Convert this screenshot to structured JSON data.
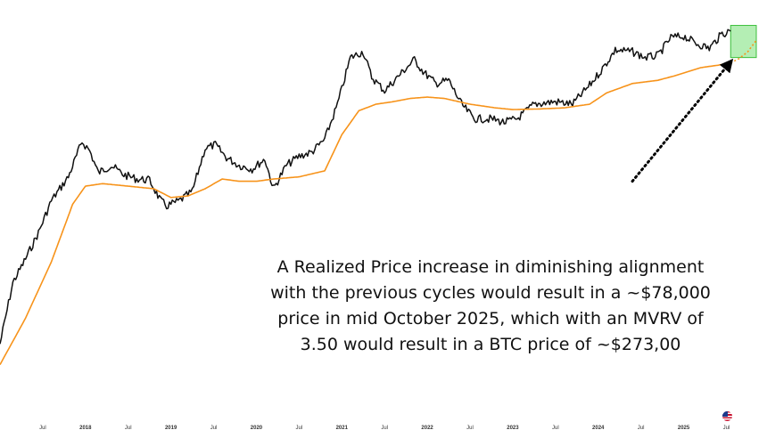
{
  "chart_data": {
    "type": "line",
    "title": "",
    "xlabel": "",
    "ylabel": "",
    "x_ticks": [
      "Jul",
      "2018",
      "Jul",
      "2019",
      "Jul",
      "2020",
      "Jul",
      "2021",
      "Jul",
      "2022",
      "Jul",
      "2023",
      "Jul",
      "2024",
      "Jul",
      "2025",
      "Jul"
    ],
    "series": [
      {
        "name": "",
        "role": "btc-price",
        "color": "#111111",
        "points": [
          [
            2017.0,
            9
          ],
          [
            2017.15,
            30
          ],
          [
            2017.3,
            48
          ],
          [
            2017.45,
            80
          ],
          [
            2017.6,
            150
          ],
          [
            2017.8,
            240
          ],
          [
            2017.96,
            480
          ],
          [
            2018.05,
            400
          ],
          [
            2018.15,
            260
          ],
          [
            2018.3,
            300
          ],
          [
            2018.45,
            250
          ],
          [
            2018.6,
            230
          ],
          [
            2018.75,
            225
          ],
          [
            2018.88,
            150
          ],
          [
            2018.95,
            135
          ],
          [
            2019.1,
            150
          ],
          [
            2019.25,
            180
          ],
          [
            2019.4,
            420
          ],
          [
            2019.52,
            450
          ],
          [
            2019.65,
            350
          ],
          [
            2019.8,
            300
          ],
          [
            2019.95,
            280
          ],
          [
            2020.1,
            340
          ],
          [
            2020.2,
            190
          ],
          [
            2020.35,
            300
          ],
          [
            2020.5,
            360
          ],
          [
            2020.65,
            390
          ],
          [
            2020.8,
            500
          ],
          [
            2020.95,
            1000
          ],
          [
            2021.1,
            2500
          ],
          [
            2021.25,
            2800
          ],
          [
            2021.35,
            1700
          ],
          [
            2021.5,
            1300
          ],
          [
            2021.65,
            1700
          ],
          [
            2021.85,
            2400
          ],
          [
            2021.95,
            1900
          ],
          [
            2022.1,
            1500
          ],
          [
            2022.25,
            1600
          ],
          [
            2022.4,
            1000
          ],
          [
            2022.55,
            750
          ],
          [
            2022.75,
            750
          ],
          [
            2022.9,
            700
          ],
          [
            2023.05,
            750
          ],
          [
            2023.25,
            1000
          ],
          [
            2023.5,
            1050
          ],
          [
            2023.7,
            1000
          ],
          [
            2023.9,
            1450
          ],
          [
            2024.05,
            2000
          ],
          [
            2024.2,
            2900
          ],
          [
            2024.4,
            2800
          ],
          [
            2024.55,
            2500
          ],
          [
            2024.7,
            2600
          ],
          [
            2024.85,
            3700
          ],
          [
            2025.0,
            3800
          ],
          [
            2025.15,
            3300
          ],
          [
            2025.3,
            3000
          ],
          [
            2025.45,
            4000
          ],
          [
            2025.55,
            4200
          ]
        ]
      },
      {
        "name": "",
        "role": "realized-price",
        "color": "#f7931a",
        "points": [
          [
            2017.0,
            6
          ],
          [
            2017.3,
            15
          ],
          [
            2017.6,
            45
          ],
          [
            2017.85,
            140
          ],
          [
            2018.0,
            200
          ],
          [
            2018.2,
            210
          ],
          [
            2018.5,
            200
          ],
          [
            2018.8,
            190
          ],
          [
            2019.0,
            160
          ],
          [
            2019.2,
            165
          ],
          [
            2019.4,
            190
          ],
          [
            2019.6,
            230
          ],
          [
            2019.8,
            220
          ],
          [
            2020.0,
            220
          ],
          [
            2020.2,
            230
          ],
          [
            2020.5,
            240
          ],
          [
            2020.8,
            270
          ],
          [
            2021.0,
            550
          ],
          [
            2021.2,
            880
          ],
          [
            2021.4,
            1000
          ],
          [
            2021.6,
            1050
          ],
          [
            2021.8,
            1120
          ],
          [
            2022.0,
            1150
          ],
          [
            2022.2,
            1120
          ],
          [
            2022.5,
            1000
          ],
          [
            2022.8,
            930
          ],
          [
            2023.0,
            900
          ],
          [
            2023.3,
            910
          ],
          [
            2023.6,
            930
          ],
          [
            2023.9,
            1000
          ],
          [
            2024.1,
            1250
          ],
          [
            2024.4,
            1500
          ],
          [
            2024.7,
            1600
          ],
          [
            2024.9,
            1750
          ],
          [
            2025.2,
            2050
          ],
          [
            2025.4,
            2150
          ],
          [
            2025.55,
            2250
          ]
        ]
      },
      {
        "name": "",
        "role": "realized-price-projection",
        "color": "#f7931a",
        "dashed": true,
        "points": [
          [
            2025.55,
            2250
          ],
          [
            2025.65,
            2450
          ],
          [
            2025.75,
            2800
          ],
          [
            2025.85,
            3500
          ]
        ]
      }
    ],
    "y_scale": "log",
    "ylim": [
      5,
      5000
    ],
    "xlim": [
      2017.0,
      2025.85
    ],
    "grid": false,
    "target_box": {
      "x": [
        2025.55,
        2025.85
      ],
      "y": [
        2500,
        4700
      ],
      "color": "#9be89b"
    },
    "arrow": {
      "from": [
        2024.4,
        220
      ],
      "to": [
        2025.55,
        2300
      ],
      "style": "dotted"
    }
  },
  "annotation": {
    "lines": [
      "A Realized Price increase in diminishing alignment",
      "with the previous cycles would result in a ~$78,000",
      "price in mid October 2025, which with an MVRV of",
      "3.50 would result in a BTC price of ~$273,00"
    ]
  }
}
